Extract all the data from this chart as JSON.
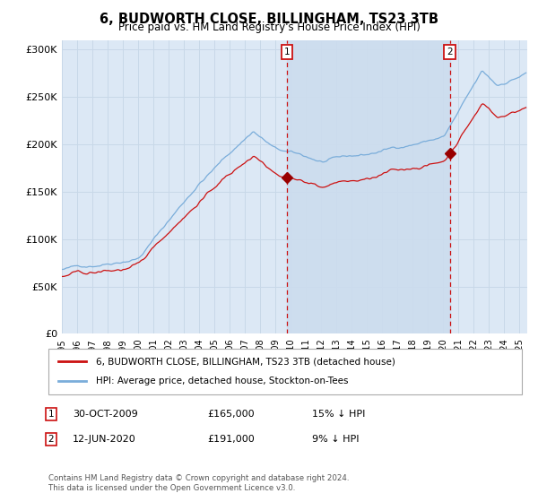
{
  "title": "6, BUDWORTH CLOSE, BILLINGHAM, TS23 3TB",
  "subtitle": "Price paid vs. HM Land Registry's House Price Index (HPI)",
  "background_color": "#ffffff",
  "plot_bg_color": "#dce8f5",
  "grid_color": "#c8d8e8",
  "hpi_color": "#7aadda",
  "price_color": "#cc1111",
  "shade_color": "#ccdcee",
  "legend_line1": "6, BUDWORTH CLOSE, BILLINGHAM, TS23 3TB (detached house)",
  "legend_line2": "HPI: Average price, detached house, Stockton-on-Tees",
  "copyright": "Contains HM Land Registry data © Crown copyright and database right 2024.\nThis data is licensed under the Open Government Licence v3.0.",
  "ylim": [
    0,
    310000
  ],
  "yticks": [
    0,
    50000,
    100000,
    150000,
    200000,
    250000,
    300000
  ],
  "ytick_labels": [
    "£0",
    "£50K",
    "£100K",
    "£150K",
    "£200K",
    "£250K",
    "£300K"
  ],
  "sale1_price": 165000,
  "sale2_price": 191000,
  "sale1_year": 2009,
  "sale1_month": 10,
  "sale2_year": 2020,
  "sale2_month": 6
}
